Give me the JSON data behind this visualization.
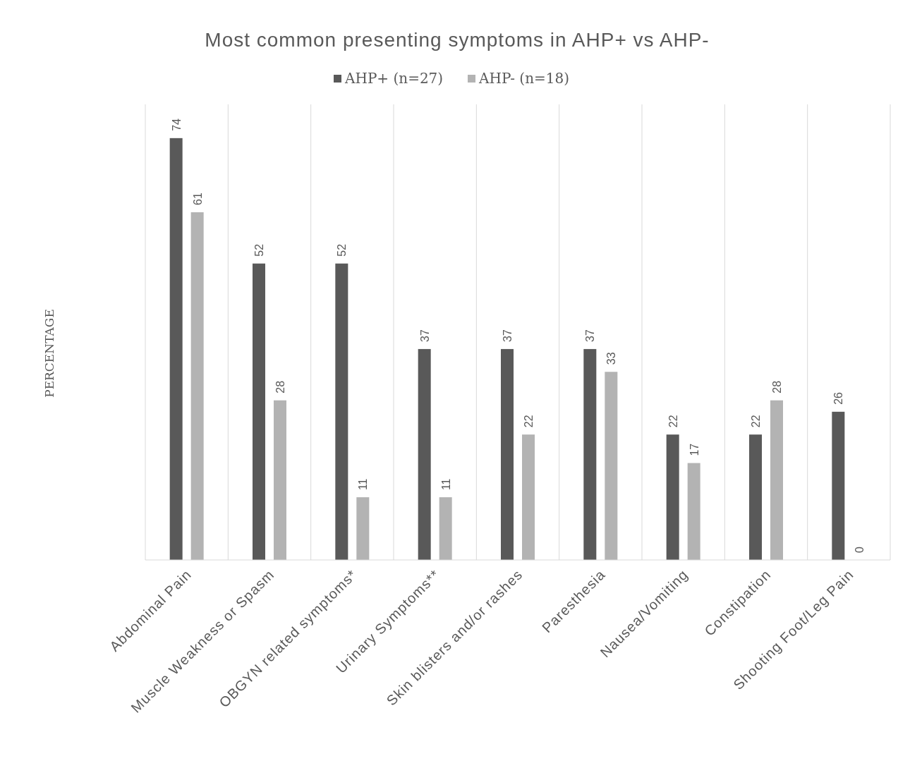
{
  "chart_data": {
    "type": "bar",
    "title": "Most common presenting symptoms in AHP+ vs AHP-",
    "ylabel": "PERCENTAGE",
    "categories": [
      "Abdominal Pain",
      "Muscle Weakness or Spasm",
      "OBGYN related symptoms*",
      "Urinary Symptoms**",
      "Skin blisters and/or rashes",
      "Paresthesia",
      "Nausea/Vomiting",
      "Constipation",
      "Shooting Foot/Leg Pain"
    ],
    "series": [
      {
        "name": "AHP+ (n=27)",
        "color": "#595959",
        "values": [
          74,
          52,
          52,
          37,
          37,
          37,
          22,
          22,
          26
        ]
      },
      {
        "name": "AHP- (n=18)",
        "color": "#b3b3b3",
        "values": [
          61,
          28,
          11,
          11,
          22,
          33,
          17,
          28,
          0
        ]
      }
    ],
    "data_labels": true,
    "grid": "x",
    "legend": "top"
  }
}
